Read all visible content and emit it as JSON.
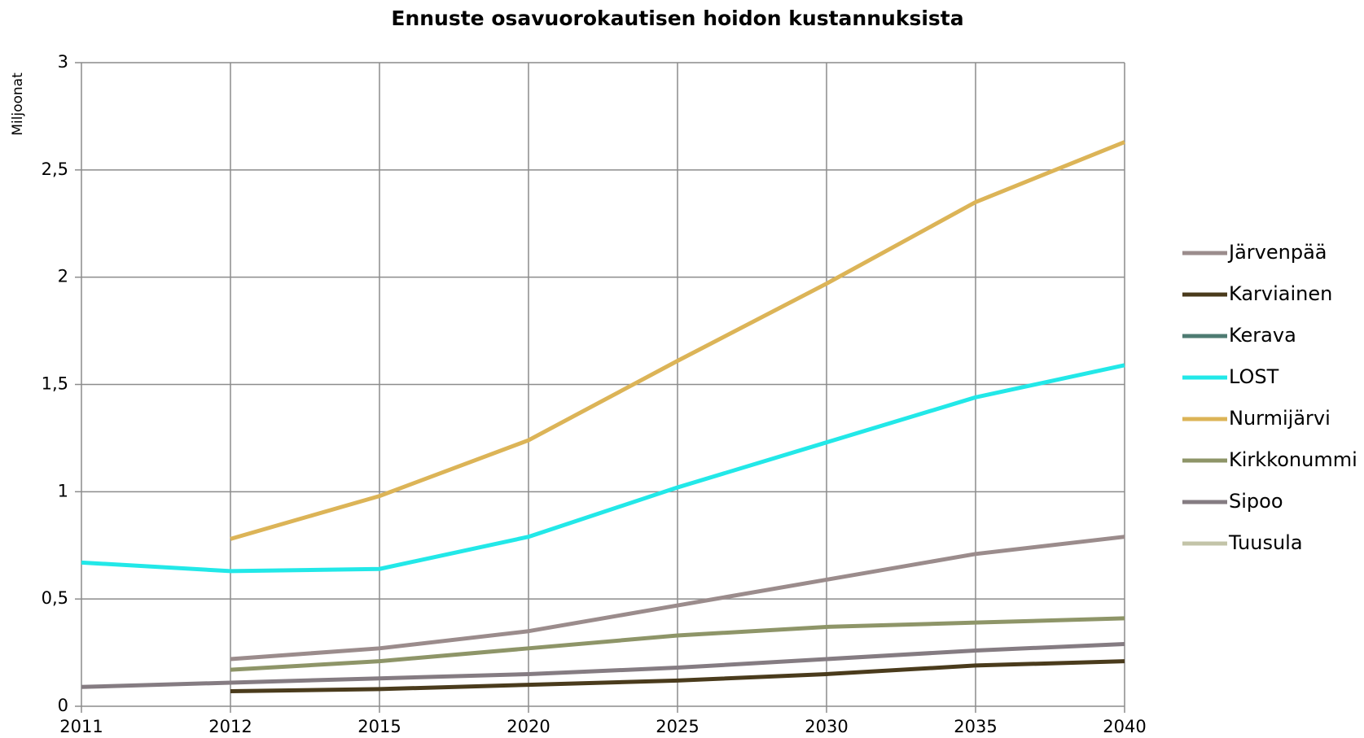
{
  "chart_data": {
    "type": "line",
    "title": "Ennuste osavuorokautisen hoidon kustannuksista",
    "y_label": "Miljoonat",
    "categories": [
      "2011",
      "2012",
      "2015",
      "2020",
      "2025",
      "2030",
      "2035",
      "2040"
    ],
    "ylim": [
      0,
      3
    ],
    "yticks": [
      0,
      {
        "value": 0.5,
        "label": "0,5"
      },
      1,
      {
        "value": 1.5,
        "label": "1,5"
      },
      2,
      {
        "value": 2.5,
        "label": "2,5"
      },
      3
    ],
    "grid": true,
    "legend": "right",
    "series": [
      {
        "name": "Järvenpää",
        "color": "#9b8c8c",
        "values": [
          null,
          0.22,
          0.27,
          0.35,
          0.47,
          0.59,
          0.71,
          0.79
        ]
      },
      {
        "name": "Karviainen",
        "color": "#4a3b1c",
        "values": [
          null,
          0.07,
          0.08,
          0.1,
          0.12,
          0.15,
          0.19,
          0.21
        ]
      },
      {
        "name": "Kerava",
        "color": "#4e7b72",
        "values": [
          null,
          null,
          null,
          null,
          null,
          null,
          null,
          null
        ]
      },
      {
        "name": "LOST",
        "color": "#22e8e8",
        "values": [
          0.67,
          0.63,
          0.64,
          0.79,
          1.02,
          1.23,
          1.44,
          1.59
        ]
      },
      {
        "name": "Nurmijärvi",
        "color": "#dcb457",
        "values": [
          null,
          0.78,
          0.98,
          1.24,
          1.61,
          1.97,
          2.35,
          2.63
        ]
      },
      {
        "name": "Kirkkonummi",
        "color": "#8e9568",
        "values": [
          null,
          0.17,
          0.21,
          0.27,
          0.33,
          0.37,
          0.39,
          0.41
        ]
      },
      {
        "name": "Sipoo",
        "color": "#857c82",
        "values": [
          0.09,
          0.11,
          0.13,
          0.15,
          0.18,
          0.22,
          0.26,
          0.29
        ]
      },
      {
        "name": "Tuusula",
        "color": "#c3c4a8",
        "values": [
          null,
          null,
          null,
          null,
          null,
          null,
          null,
          null
        ]
      }
    ]
  }
}
